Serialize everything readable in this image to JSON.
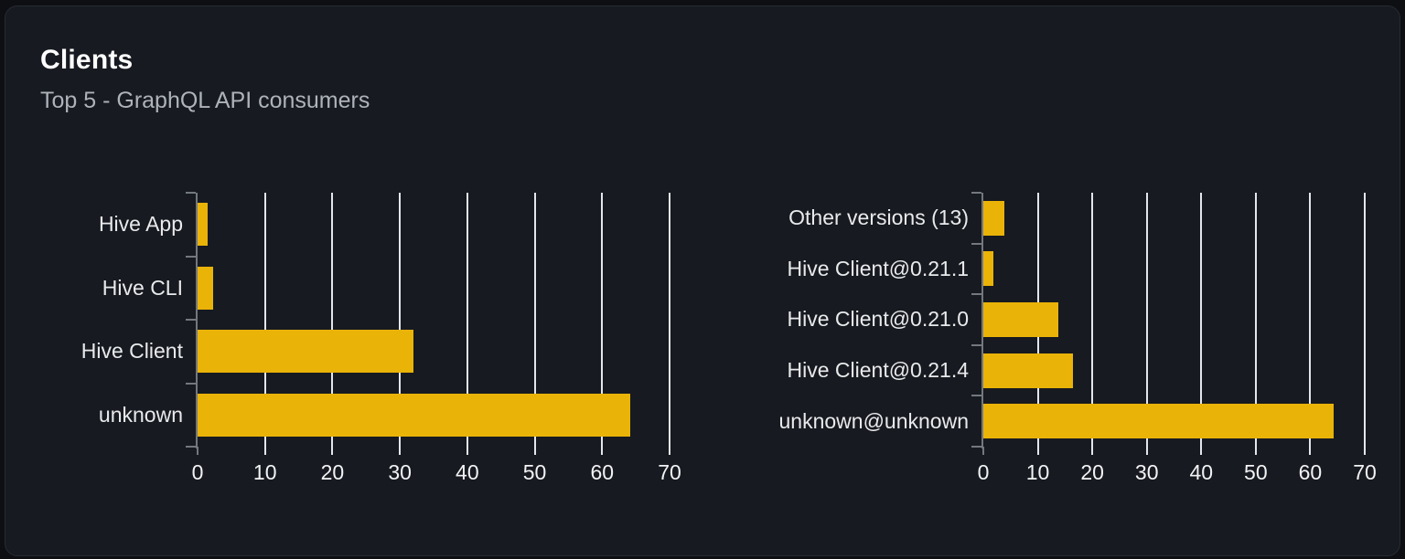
{
  "card": {
    "title": "Clients",
    "subtitle": "Top 5 - GraphQL API consumers"
  },
  "colors": {
    "bar": "#eab308",
    "grid": "#e3e7ed",
    "axis": "#73787f",
    "page_bg": "#0e0f12",
    "card_bg": "#171a20",
    "card_border": "#272b33",
    "title": "#ffffff",
    "subtitle": "#aeb3bb",
    "category_label": "#e9eaec",
    "tick_label": "#f2f3f5"
  },
  "chart_data": [
    {
      "type": "bar",
      "orientation": "horizontal",
      "categories": [
        "Hive App",
        "Hive CLI",
        "Hive Client",
        "unknown"
      ],
      "values": [
        1.5,
        2.3,
        32,
        64.2
      ],
      "xlabel": "",
      "ylabel": "",
      "xlim": [
        0,
        70
      ],
      "xticks": [
        0,
        10,
        20,
        30,
        40,
        50,
        60,
        70
      ],
      "grid": "vertical-gridlines",
      "legend": "none"
    },
    {
      "type": "bar",
      "orientation": "horizontal",
      "categories": [
        "Other versions (13)",
        "Hive Client@0.21.1",
        "Hive Client@0.21.0",
        "Hive Client@0.21.4",
        "unknown@unknown"
      ],
      "values": [
        3.9,
        1.8,
        13.7,
        16.4,
        64.3
      ],
      "xlabel": "",
      "ylabel": "",
      "xlim": [
        0,
        70
      ],
      "xticks": [
        0,
        10,
        20,
        30,
        40,
        50,
        60,
        70
      ],
      "grid": "vertical-gridlines",
      "legend": "none"
    }
  ]
}
